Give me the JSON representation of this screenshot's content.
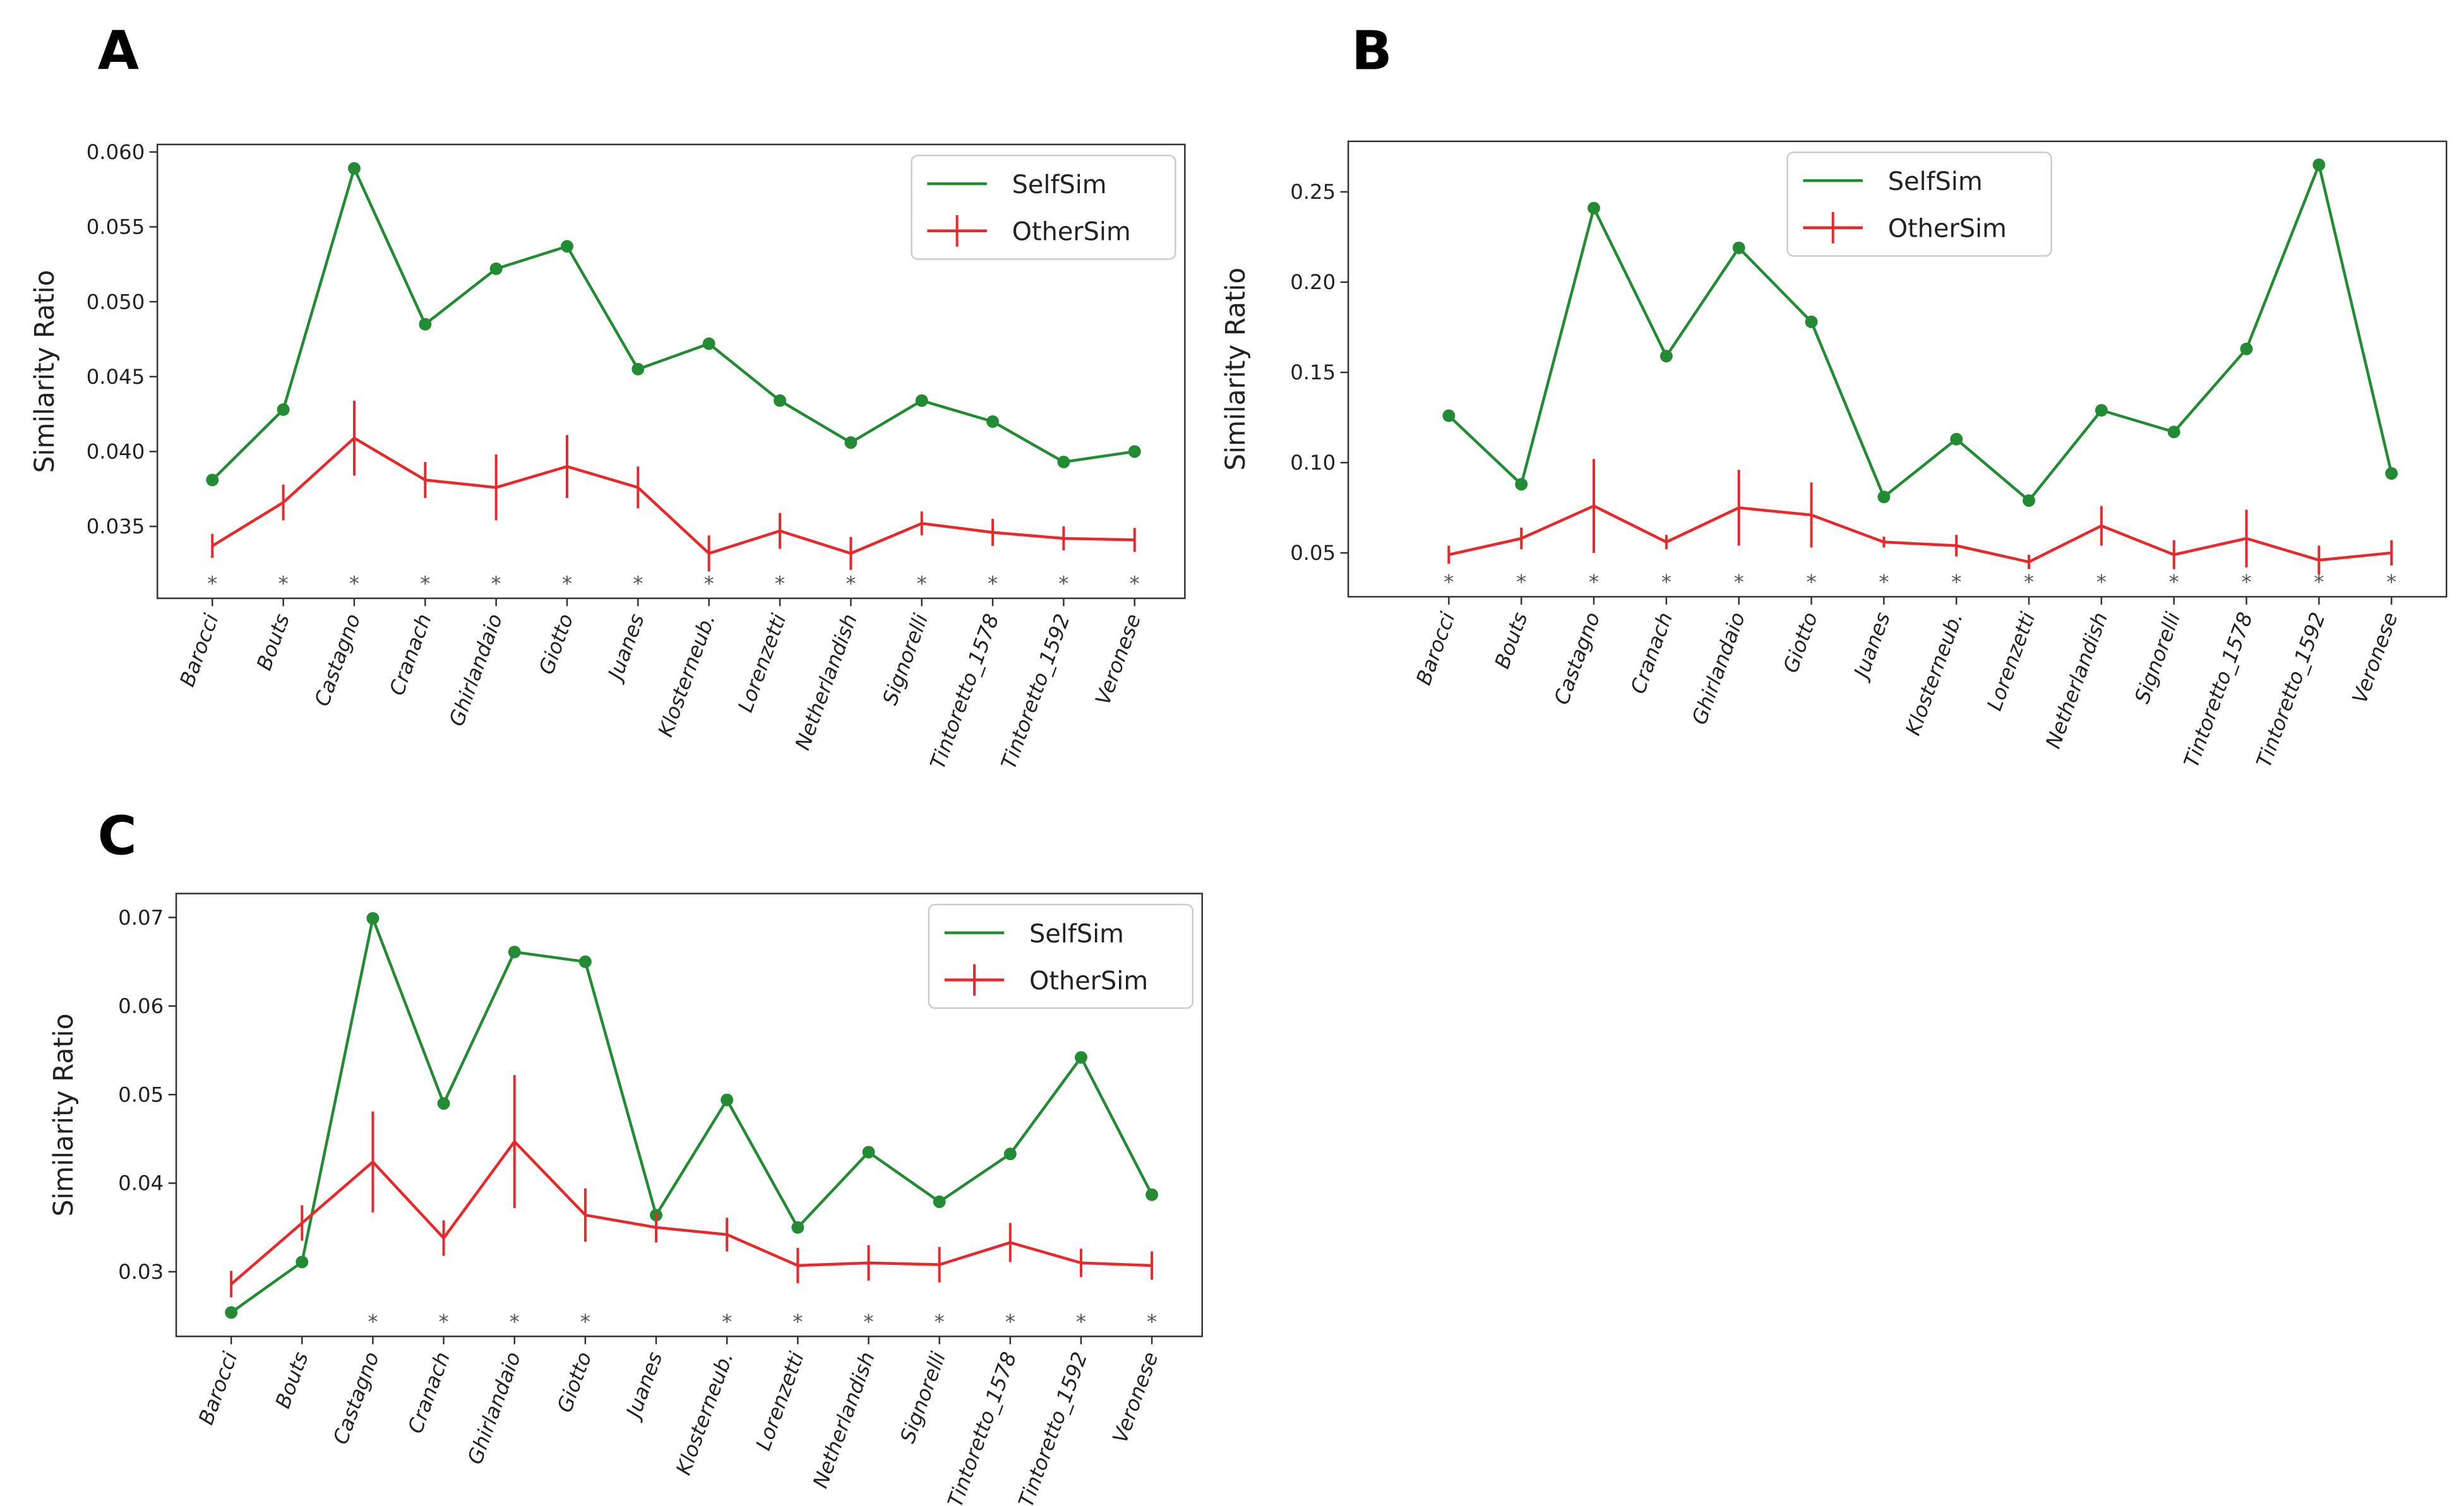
{
  "chart_data": [
    {
      "type": "line",
      "panel_label": "A",
      "y_label": "Similarity Ratio",
      "legend": "upper right",
      "categories": [
        "Barocci",
        "Bouts",
        "Castagno",
        "Cranach",
        "Ghirlandaio",
        "Giotto",
        "Juanes",
        "Klosterneub.",
        "Lorenzetti",
        "Netherlandish",
        "Signorelli",
        "Tintoretto_1578",
        "Tintoretto_1592",
        "Veronese"
      ],
      "annotations": [
        "*",
        "*",
        "*",
        "*",
        "*",
        "*",
        "*",
        "*",
        "*",
        "*",
        "*",
        "*",
        "*",
        "*"
      ],
      "series": [
        {
          "name": "SelfSim",
          "color": "#228b33",
          "marker": "o",
          "values": [
            0.0381,
            0.0428,
            0.0589,
            0.0485,
            0.0522,
            0.0537,
            0.0455,
            0.0472,
            0.0434,
            0.0406,
            0.0434,
            0.042,
            0.0393,
            0.04
          ]
        },
        {
          "name": "OtherSim",
          "color": "#e8282a",
          "values": [
            0.0337,
            0.0366,
            0.0409,
            0.0381,
            0.0376,
            0.039,
            0.0376,
            0.0332,
            0.0347,
            0.0332,
            0.0352,
            0.0346,
            0.0342,
            0.0341
          ],
          "errors": [
            0.0008,
            0.0012,
            0.0025,
            0.0012,
            0.0022,
            0.0021,
            0.0014,
            0.0012,
            0.0012,
            0.0011,
            0.0008,
            0.0009,
            0.0008,
            0.0008
          ]
        }
      ],
      "ylim": [
        0.0302,
        0.0605
      ],
      "yticks": [
        0.035,
        {
          "value": 0.04,
          "label": "0.040"
        },
        0.045,
        {
          "value": 0.05,
          "label": "0.050"
        },
        0.055,
        {
          "value": 0.06,
          "label": "0.060"
        }
      ]
    },
    {
      "type": "line",
      "panel_label": "B",
      "y_label": "Similarity Ratio",
      "legend": "upper center",
      "categories": [
        "Barocci",
        "Bouts",
        "Castagno",
        "Cranach",
        "Ghirlandaio",
        "Giotto",
        "Juanes",
        "Klosterneub.",
        "Lorenzetti",
        "Netherlandish",
        "Signorelli",
        "Tintoretto_1578",
        "Tintoretto_1592",
        "Veronese"
      ],
      "annotations": [
        "*",
        "*",
        "*",
        "*",
        "*",
        "*",
        "*",
        "*",
        "*",
        "*",
        "*",
        "*",
        "*",
        "*"
      ],
      "series": [
        {
          "name": "SelfSim",
          "color": "#228b33",
          "marker": "o",
          "values": [
            0.126,
            0.088,
            0.241,
            0.159,
            0.219,
            0.178,
            0.081,
            0.113,
            0.079,
            0.129,
            0.117,
            0.163,
            0.265,
            0.094
          ]
        },
        {
          "name": "OtherSim",
          "color": "#e8282a",
          "values": [
            0.049,
            0.058,
            0.076,
            0.056,
            0.075,
            0.071,
            0.056,
            0.054,
            0.045,
            0.065,
            0.049,
            0.058,
            0.046,
            0.05
          ],
          "errors": [
            0.005,
            0.006,
            0.026,
            0.004,
            0.021,
            0.018,
            0.003,
            0.006,
            0.004,
            0.011,
            0.008,
            0.016,
            0.008,
            0.007
          ]
        }
      ],
      "ylim": [
        0.0257,
        0.278
      ],
      "yticks": [
        0.05,
        {
          "value": 0.1,
          "label": "0.10"
        },
        0.15,
        {
          "value": 0.2,
          "label": "0.20"
        },
        0.25
      ]
    },
    {
      "type": "line",
      "panel_label": "C",
      "y_label": "Similarity Ratio",
      "legend": "upper right",
      "categories": [
        "Barocci",
        "Bouts",
        "Castagno",
        "Cranach",
        "Ghirlandaio",
        "Giotto",
        "Juanes",
        "Klosterneub.",
        "Lorenzetti",
        "Netherlandish",
        "Signorelli",
        "Tintoretto_1578",
        "Tintoretto_1592",
        "Veronese"
      ],
      "annotations": [
        null,
        null,
        "*",
        "*",
        "*",
        "*",
        null,
        "*",
        "*",
        "*",
        "*",
        "*",
        "*",
        "*"
      ],
      "series": [
        {
          "name": "SelfSim",
          "color": "#228b33",
          "marker": "o",
          "values": [
            0.0254,
            0.0311,
            0.0699,
            0.049,
            0.0661,
            0.065,
            0.0364,
            0.0494,
            0.035,
            0.0435,
            0.0379,
            0.0433,
            0.0542,
            0.0387
          ]
        },
        {
          "name": "OtherSim",
          "color": "#e8282a",
          "values": [
            0.0286,
            0.0355,
            0.0424,
            0.0338,
            0.0447,
            0.0364,
            0.035,
            0.0342,
            0.0307,
            0.031,
            0.0308,
            0.0333,
            0.031,
            0.0307
          ],
          "errors": [
            0.0015,
            0.002,
            0.0057,
            0.002,
            0.0075,
            0.003,
            0.0017,
            0.0019,
            0.002,
            0.002,
            0.002,
            0.0022,
            0.0016,
            0.0016
          ]
        }
      ],
      "ylim": [
        0.0227,
        0.0727
      ],
      "yticks": [
        0.03,
        0.04,
        0.05,
        0.06,
        0.07
      ]
    }
  ]
}
